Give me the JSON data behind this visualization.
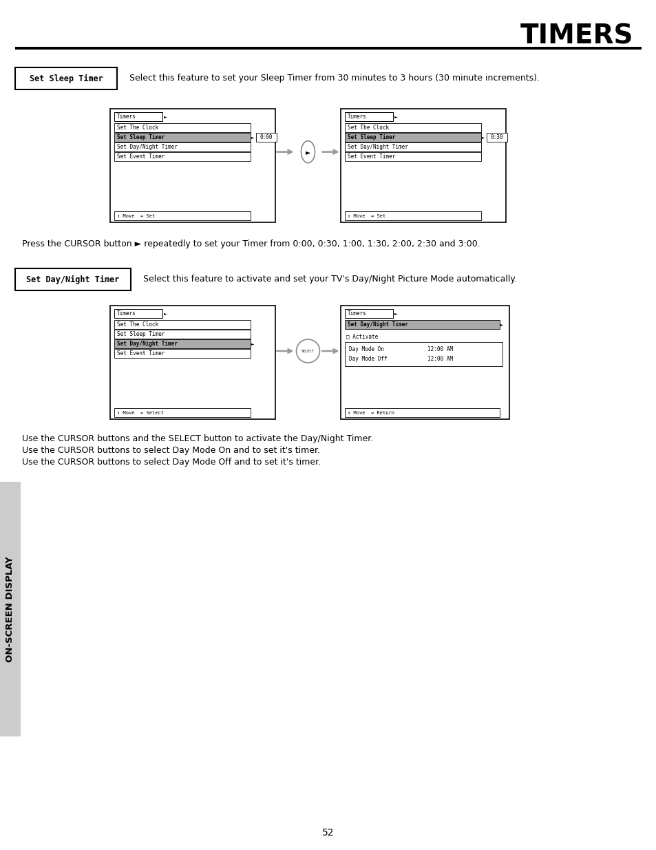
{
  "title": "TIMERS",
  "bg_color": "#ffffff",
  "sidebar_color": "#cccccc",
  "sidebar_text": "ON-SCREEN DISPLAY",
  "page_number": "52",
  "section1_label": "Set Sleep Timer",
  "section1_desc": "Select this feature to set your Sleep Timer from 30 minutes to 3 hours (30 minute increments).",
  "section2_label": "Set Day/Night Timer",
  "section2_desc": "Select this feature to activate and set your TV's Day/Night Picture Mode automatically.",
  "cursor_text": "Press the CURSOR button ► repeatedly to set your Timer from 0:00, 0:30, 1:00, 1:30, 2:00, 2:30 and 3:00.",
  "body_text_1": "Use the CURSOR buttons and the SELECT button to activate the Day/Night Timer.",
  "body_text_2": "Use the CURSOR buttons to select Day Mode On and to set it's timer.",
  "body_text_3": "Use the CURSOR buttons to select Day Mode Off and to set it's timer.",
  "screen1_menu_items": [
    "Set The Clock",
    "Set Sleep Timer",
    "Set Day/Night Timer",
    "Set Event Timer"
  ],
  "screen1_selected": "Set Sleep Timer",
  "screen1_value": "0:00",
  "screen1_title": "Timers",
  "screen2_menu_items": [
    "Set The Clock",
    "Set Sleep Timer",
    "Set Day/Night Timer",
    "Set Event Timer"
  ],
  "screen2_selected": "Set Sleep Timer",
  "screen2_value": "0:30",
  "screen2_title": "Timers",
  "screen3_menu_items": [
    "Set The Clock",
    "Set Sleep Timer",
    "Set Day/Night Timer",
    "Set Event Timer"
  ],
  "screen3_selected": "Set Day/Night Timer",
  "screen3_title": "Timers",
  "screen4_title": "Timers",
  "screen4_selected_header": "Set Day/Night Timer",
  "screen4_activate": "□ Activate",
  "screen4_day_on": "Day Mode On",
  "screen4_day_off": "Day Mode Off",
  "screen4_time_on": "12:00 AM",
  "screen4_time_off": "12:00 AM"
}
